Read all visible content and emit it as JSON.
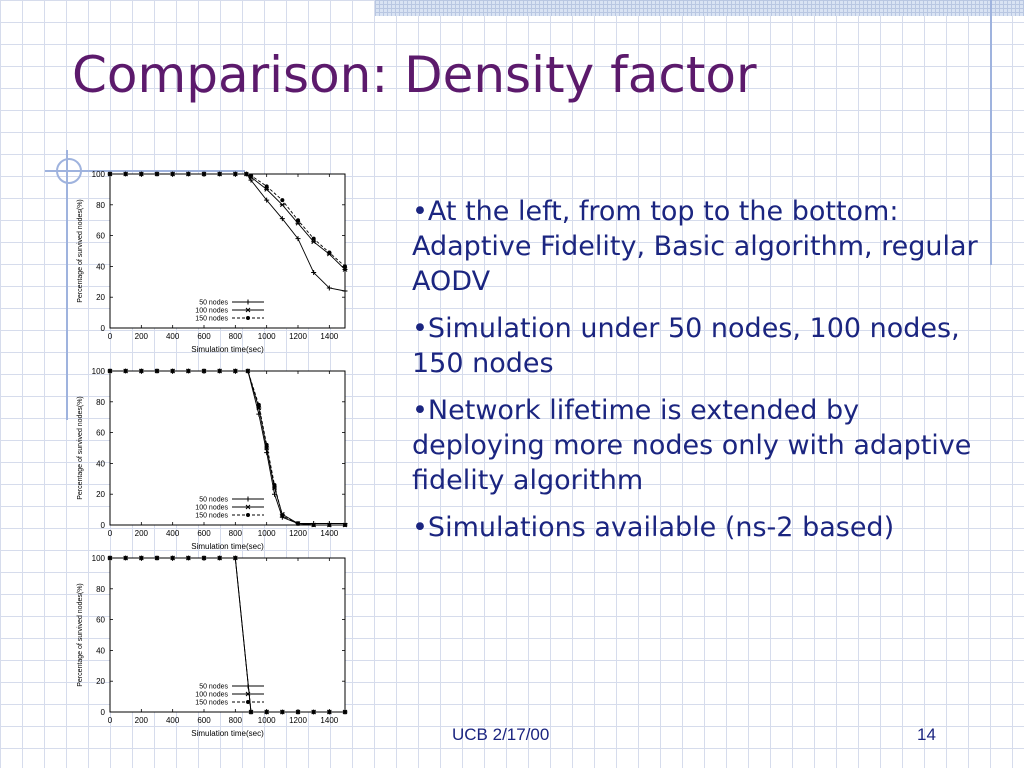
{
  "slide": {
    "title": "Comparison: Density factor",
    "bullets": [
      "•At the left, from top to the bottom: Adaptive Fidelity, Basic algorithm, regular AODV",
      "•Simulation under 50 nodes, 100 nodes, 150 nodes",
      "•Network lifetime is extended by deploying more nodes only with adaptive fidelity algorithm",
      "•Simulations available (ns-2 based)"
    ],
    "footer_date": "UCB 2/17/00",
    "page_number": "14",
    "accent_color": "#5c1a6c",
    "text_color": "#1b2580"
  },
  "chart_data": [
    {
      "type": "line",
      "xlabel": "Simulation time(sec)",
      "ylabel": "Percentage of survived nodes(%)",
      "xlim": [
        0,
        1500
      ],
      "ylim": [
        0,
        100
      ],
      "xticks": [
        0,
        200,
        400,
        600,
        800,
        1000,
        1200,
        1400
      ],
      "yticks": [
        0,
        20,
        40,
        60,
        80,
        100
      ],
      "grid": false,
      "legend_position": "bottom-right",
      "series": [
        {
          "name": "50 nodes",
          "marker": "plus",
          "dash": "solid",
          "x": [
            0,
            100,
            200,
            300,
            400,
            500,
            600,
            700,
            800,
            870,
            900,
            1000,
            1100,
            1200,
            1300,
            1400,
            1500
          ],
          "y": [
            100,
            100,
            100,
            100,
            100,
            100,
            100,
            100,
            100,
            100,
            96,
            83,
            71,
            58,
            36,
            26,
            24
          ]
        },
        {
          "name": "100 nodes",
          "marker": "cross",
          "dash": "solid",
          "x": [
            0,
            100,
            200,
            300,
            400,
            500,
            600,
            700,
            800,
            870,
            900,
            1000,
            1100,
            1200,
            1300,
            1400,
            1500
          ],
          "y": [
            100,
            100,
            100,
            100,
            100,
            100,
            100,
            100,
            100,
            100,
            98,
            90,
            80,
            68,
            56,
            48,
            38
          ]
        },
        {
          "name": "150 nodes",
          "marker": "dot",
          "dash": "dashed",
          "x": [
            0,
            100,
            200,
            300,
            400,
            500,
            600,
            700,
            800,
            870,
            900,
            1000,
            1100,
            1200,
            1300,
            1400,
            1500
          ],
          "y": [
            100,
            100,
            100,
            100,
            100,
            100,
            100,
            100,
            100,
            100,
            99,
            92,
            83,
            70,
            58,
            49,
            40
          ]
        }
      ]
    },
    {
      "type": "line",
      "xlabel": "Simulation time(sec)",
      "ylabel": "Percentage of survived nodes(%)",
      "xlim": [
        0,
        1500
      ],
      "ylim": [
        0,
        100
      ],
      "xticks": [
        0,
        200,
        400,
        600,
        800,
        1000,
        1200,
        1400
      ],
      "yticks": [
        0,
        20,
        40,
        60,
        80,
        100
      ],
      "grid": false,
      "legend_position": "bottom-right",
      "series": [
        {
          "name": "50 nodes",
          "marker": "plus",
          "dash": "solid",
          "x": [
            0,
            100,
            200,
            300,
            400,
            500,
            600,
            700,
            800,
            880,
            950,
            1000,
            1050,
            1100,
            1200,
            1300,
            1400,
            1500
          ],
          "y": [
            100,
            100,
            100,
            100,
            100,
            100,
            100,
            100,
            100,
            100,
            72,
            47,
            20,
            5,
            1,
            1,
            1,
            1
          ]
        },
        {
          "name": "100 nodes",
          "marker": "cross",
          "dash": "solid",
          "x": [
            0,
            100,
            200,
            300,
            400,
            500,
            600,
            700,
            800,
            880,
            950,
            1000,
            1050,
            1100,
            1200,
            1300,
            1400,
            1500
          ],
          "y": [
            100,
            100,
            100,
            100,
            100,
            100,
            100,
            100,
            100,
            100,
            76,
            50,
            24,
            7,
            1,
            0,
            0,
            0
          ]
        },
        {
          "name": "150 nodes",
          "marker": "dot",
          "dash": "dashed",
          "x": [
            0,
            100,
            200,
            300,
            400,
            500,
            600,
            700,
            800,
            880,
            950,
            1000,
            1050,
            1100,
            1200,
            1300,
            1400,
            1500
          ],
          "y": [
            100,
            100,
            100,
            100,
            100,
            100,
            100,
            100,
            100,
            100,
            78,
            52,
            26,
            6,
            1,
            0,
            0,
            0
          ]
        }
      ]
    },
    {
      "type": "line",
      "xlabel": "Simulation time(sec)",
      "ylabel": "Percentage of survived nodes(%)",
      "xlim": [
        0,
        1500
      ],
      "ylim": [
        0,
        100
      ],
      "xticks": [
        0,
        200,
        400,
        600,
        800,
        1000,
        1200,
        1400
      ],
      "yticks": [
        0,
        20,
        40,
        60,
        80,
        100
      ],
      "grid": false,
      "legend_position": "bottom-right",
      "series": [
        {
          "name": "50 nodes",
          "marker": "plus",
          "dash": "solid",
          "x": [
            0,
            100,
            200,
            300,
            400,
            500,
            600,
            700,
            800,
            900,
            1000,
            1100,
            1200,
            1300,
            1400,
            1500
          ],
          "y": [
            100,
            100,
            100,
            100,
            100,
            100,
            100,
            100,
            100,
            0,
            0,
            0,
            0,
            0,
            0,
            0
          ]
        },
        {
          "name": "100 nodes",
          "marker": "cross",
          "dash": "solid",
          "x": [
            0,
            100,
            200,
            300,
            400,
            500,
            600,
            700,
            800,
            900,
            1000,
            1100,
            1200,
            1300,
            1400,
            1500
          ],
          "y": [
            100,
            100,
            100,
            100,
            100,
            100,
            100,
            100,
            100,
            0,
            0,
            0,
            0,
            0,
            0,
            0
          ]
        },
        {
          "name": "150 nodes",
          "marker": "dot",
          "dash": "dashed",
          "x": [
            0,
            100,
            200,
            300,
            400,
            500,
            600,
            700,
            800,
            900,
            1000,
            1100,
            1200,
            1300,
            1400,
            1500
          ],
          "y": [
            100,
            100,
            100,
            100,
            100,
            100,
            100,
            100,
            100,
            0,
            0,
            0,
            0,
            0,
            0,
            0
          ]
        }
      ]
    }
  ]
}
